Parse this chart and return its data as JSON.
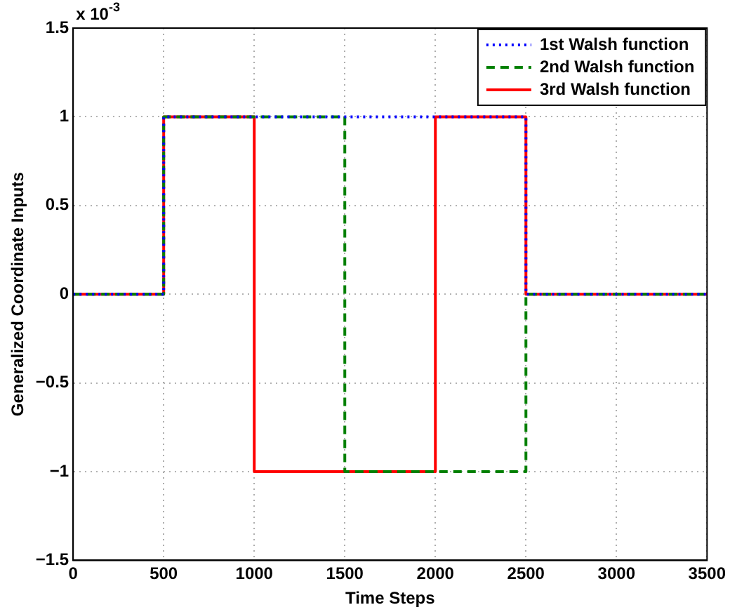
{
  "chart_data": {
    "type": "step",
    "xlabel": "Time Steps",
    "ylabel": "Generalized Coordinate Inputs",
    "annotations": [
      "x 10$^{-3}$"
    ],
    "x": [
      0,
      500,
      1000,
      1500,
      2000,
      2500,
      3500
    ],
    "series": [
      {
        "name": "1st Walsh function",
        "color": "#0000ff",
        "line_style": "dotted",
        "values": [
          0,
          1,
          1,
          1,
          1,
          0,
          0
        ]
      },
      {
        "name": "2nd Walsh function",
        "color": "#008000",
        "line_style": "dashed",
        "values": [
          0,
          1,
          1,
          -1,
          -1,
          0,
          0
        ]
      },
      {
        "name": "3rd Walsh function",
        "color": "#ff0000",
        "line_style": "solid",
        "values": [
          0,
          1,
          -1,
          -1,
          1,
          0,
          0
        ]
      }
    ],
    "xlim": [
      0,
      3500
    ],
    "xticks": [
      0,
      500,
      1000,
      1500,
      2000,
      2500,
      3000,
      3500
    ],
    "ylim": [
      -1.5,
      1.5
    ],
    "yticks": [
      -1.5,
      -1,
      -0.5,
      0,
      0.5,
      1,
      1.5
    ],
    "grid": true,
    "legend": "top right",
    "marker": "none"
  }
}
